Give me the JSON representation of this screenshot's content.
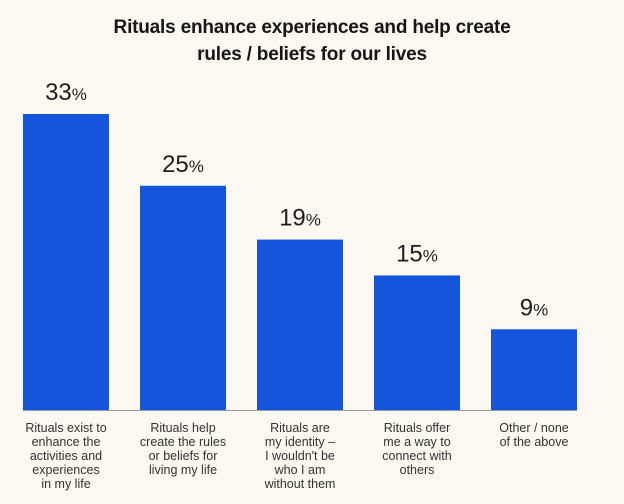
{
  "chart_data": {
    "type": "bar",
    "title": "Rituals enhance experiences and help create rules / beliefs for our lives",
    "title_lines": [
      "Rituals enhance experiences and help create",
      "rules / beliefs for our lives"
    ],
    "categories": [
      "Rituals exist to enhance the activities and experiences in my life",
      "Rituals help create the rules or beliefs for living my life",
      "Rituals are my identity – I wouldn't be who I am without them",
      "Rituals offer me a way to connect with others",
      "Other / none of the above"
    ],
    "category_lines": [
      [
        "Rituals exist to",
        "enhance the",
        "activities and",
        "experiences",
        "in my life"
      ],
      [
        "Rituals help",
        "create the rules",
        "or beliefs for",
        "living my life"
      ],
      [
        "Rituals are",
        "my identity –",
        "I wouldn't be",
        "who I am",
        "without them"
      ],
      [
        "Rituals offer",
        "me a way to",
        "connect with",
        "others"
      ],
      [
        "Other / none",
        "of the above"
      ]
    ],
    "values": [
      33,
      25,
      19,
      15,
      9
    ],
    "value_labels": [
      "33",
      "25",
      "19",
      "15",
      "9"
    ],
    "unit": "%",
    "xlabel": "",
    "ylabel": "",
    "ylim": [
      0,
      33
    ],
    "grid": false,
    "legend": "none",
    "bar_color": "#1555dc",
    "background_color": "#fbf8f1"
  }
}
